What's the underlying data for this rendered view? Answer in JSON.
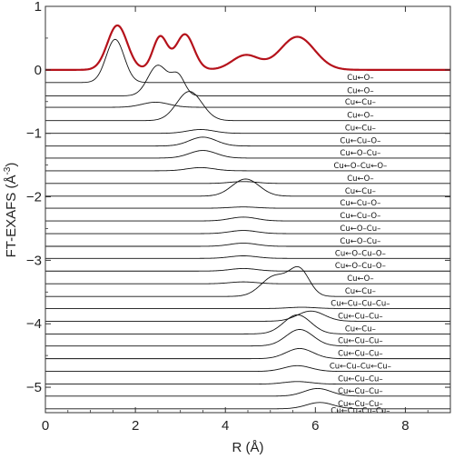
{
  "chart_data": {
    "type": "line",
    "title": "",
    "xlabel": "R (Å)",
    "ylabel": "FT-EXAFS (Å",
    "ylabel_superscript": "-3",
    "ylabel_suffix": ")",
    "xlim": [
      0,
      9
    ],
    "ylim": [
      -5.4,
      1.0
    ],
    "x_ticks": [
      0,
      2,
      4,
      6,
      8
    ],
    "y_ticks": [
      1,
      0,
      -1,
      -2,
      -3,
      -4,
      -5
    ],
    "grid": false,
    "total_curve": {
      "name": "total",
      "color": "#b5121b",
      "baseline": 0.0,
      "peaks": [
        {
          "center": 1.6,
          "amplitude": 0.7,
          "width": 0.22
        },
        {
          "center": 2.55,
          "amplitude": 0.52,
          "width": 0.16
        },
        {
          "center": 3.1,
          "amplitude": 0.56,
          "width": 0.2
        },
        {
          "center": 4.45,
          "amplitude": 0.23,
          "width": 0.3
        },
        {
          "center": 5.6,
          "amplitude": 0.52,
          "width": 0.38
        }
      ],
      "dips": [
        {
          "center": 2.1,
          "amplitude": -0.05,
          "width": 0.1
        },
        {
          "center": 2.85,
          "amplitude": 0.18,
          "width": 0.08
        }
      ]
    },
    "series": [
      {
        "label": "Cu←O–",
        "baseline": -0.2,
        "peak_center": 1.55,
        "peak_amplitude": 0.68,
        "peak_width": 0.2
      },
      {
        "label": "Cu←O–",
        "baseline": -0.41,
        "peak_center": 2.5,
        "peak_amplitude": 0.48,
        "peak_width": 0.22,
        "extra_center": 2.95,
        "extra_amplitude": 0.3,
        "extra_width": 0.15
      },
      {
        "label": "Cu←Cu–",
        "baseline": -0.59,
        "peak_center": 2.45,
        "peak_amplitude": 0.08,
        "peak_width": 0.3
      },
      {
        "label": "Cu←O–",
        "baseline": -0.8,
        "peak_center": 3.2,
        "peak_amplitude": 0.46,
        "peak_width": 0.28
      },
      {
        "label": "Cu←Cu–",
        "baseline": -1.0,
        "peak_center": 3.45,
        "peak_amplitude": 0.06,
        "peak_width": 0.3
      },
      {
        "label": "Cu←Cu–O–",
        "baseline": -1.2,
        "peak_center": 3.5,
        "peak_amplitude": 0.14,
        "peak_width": 0.3
      },
      {
        "label": "Cu←O–Cu–",
        "baseline": -1.39,
        "peak_center": 3.5,
        "peak_amplitude": 0.12,
        "peak_width": 0.3
      },
      {
        "label": "Cu←O–Cu←O–",
        "baseline": -1.59,
        "peak_center": 3.45,
        "peak_amplitude": 0.05,
        "peak_width": 0.3
      },
      {
        "label": "Cu←O–",
        "baseline": -1.79,
        "peak_center": 4.4,
        "peak_amplitude": 0.03,
        "peak_width": 0.3
      },
      {
        "label": "Cu←Cu–",
        "baseline": -1.99,
        "peak_center": 4.45,
        "peak_amplitude": 0.27,
        "peak_width": 0.3
      },
      {
        "label": "Cu←Cu–O–",
        "baseline": -2.18,
        "peak_center": 4.4,
        "peak_amplitude": 0.02,
        "peak_width": 0.3
      },
      {
        "label": "Cu←Cu–O–",
        "baseline": -2.38,
        "peak_center": 4.4,
        "peak_amplitude": 0.06,
        "peak_width": 0.3
      },
      {
        "label": "Cu←O–Cu–",
        "baseline": -2.58,
        "peak_center": 4.4,
        "peak_amplitude": 0.05,
        "peak_width": 0.3
      },
      {
        "label": "Cu←O–Cu–",
        "baseline": -2.78,
        "peak_center": 4.4,
        "peak_amplitude": 0.05,
        "peak_width": 0.3
      },
      {
        "label": "Cu←O–Cu–O–",
        "baseline": -2.97,
        "peak_center": 4.4,
        "peak_amplitude": 0.04,
        "peak_width": 0.3
      },
      {
        "label": "Cu←O–Cu–O–",
        "baseline": -3.17,
        "peak_center": 4.4,
        "peak_amplitude": 0.04,
        "peak_width": 0.3
      },
      {
        "label": "Cu←O–",
        "baseline": -3.37,
        "peak_center": 4.4,
        "peak_amplitude": 0.03,
        "peak_width": 0.3
      },
      {
        "label": "Cu←Cu–",
        "baseline": -3.57,
        "peak_center": 5.1,
        "peak_amplitude": 0.32,
        "peak_width": 0.3,
        "extra_center": 5.65,
        "extra_amplitude": 0.4,
        "extra_width": 0.22
      },
      {
        "label": "Cu←Cu–Cu–Cu–",
        "baseline": -3.76,
        "peak_center": 5.7,
        "peak_amplitude": 0.02,
        "peak_width": 0.3
      },
      {
        "label": "Cu←Cu–Cu–",
        "baseline": -3.96,
        "peak_center": 5.9,
        "peak_amplitude": 0.16,
        "peak_width": 0.3
      },
      {
        "label": "Cu←Cu–",
        "baseline": -4.16,
        "peak_center": 5.6,
        "peak_amplitude": 0.3,
        "peak_width": 0.3
      },
      {
        "label": "Cu←Cu–Cu–",
        "baseline": -4.35,
        "peak_center": 5.65,
        "peak_amplitude": 0.26,
        "peak_width": 0.3
      },
      {
        "label": "Cu←Cu–Cu–",
        "baseline": -4.55,
        "peak_center": 5.65,
        "peak_amplitude": 0.16,
        "peak_width": 0.3
      },
      {
        "label": "Cu←Cu–Cu←Cu–",
        "baseline": -4.75,
        "peak_center": 5.6,
        "peak_amplitude": 0.09,
        "peak_width": 0.3
      },
      {
        "label": "Cu←Cu–Cu–",
        "baseline": -4.95,
        "peak_center": 5.6,
        "peak_amplitude": 0.04,
        "peak_width": 0.3
      },
      {
        "label": "Cu←Cu–Cu–",
        "baseline": -5.14,
        "peak_center": 6.05,
        "peak_amplitude": 0.12,
        "peak_width": 0.3
      },
      {
        "label": "Cu←Cu–Cu–",
        "baseline": -5.34,
        "peak_center": 6.1,
        "peak_amplitude": 0.1,
        "peak_width": 0.3
      },
      {
        "label": "Cu←Cu–Cu–Cu–",
        "baseline": -5.45,
        "peak_center": 6.0,
        "peak_amplitude": 0.05,
        "peak_width": 0.3
      }
    ]
  }
}
